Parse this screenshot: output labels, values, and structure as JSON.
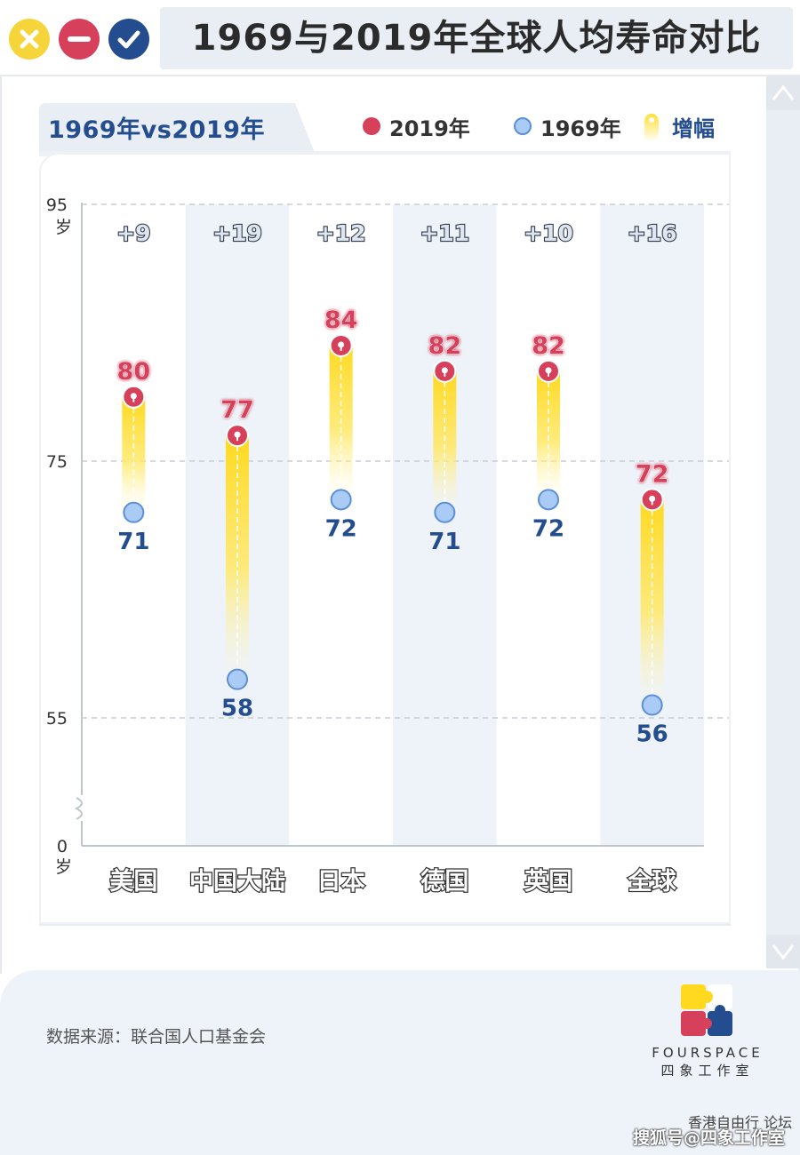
{
  "window": {
    "title": "1969与2019年全球人均寿命对比",
    "buttons": [
      "close",
      "minimize",
      "confirm"
    ]
  },
  "header": {
    "tab_label": "1969年vs2019年",
    "legend": {
      "y2019": "2019年",
      "y1969": "1969年",
      "increase": "增幅"
    }
  },
  "colors": {
    "y2019": "#d6405a",
    "y1969": "#a9cbf5",
    "increase": "#ffe033",
    "accent": "#244d8f",
    "band": "#eef3f9"
  },
  "chart_data": {
    "type": "dot-range",
    "categories": [
      "美国",
      "中国大陆",
      "日本",
      "德国",
      "英国",
      "全球"
    ],
    "series": [
      {
        "name": "1969年",
        "values": [
          71,
          58,
          72,
          71,
          72,
          56
        ]
      },
      {
        "name": "2019年",
        "values": [
          80,
          77,
          84,
          82,
          82,
          72
        ]
      }
    ],
    "increase_labels": [
      "+9",
      "+19",
      "+12",
      "+11",
      "+10",
      "+16"
    ],
    "yticks": [
      "95",
      "75",
      "55",
      "0"
    ],
    "yunit": "岁",
    "ylim": [
      0,
      95
    ],
    "axis_break": true,
    "grid": true
  },
  "footer": {
    "source": "数据来源：联合国人口基金会",
    "brand_en": "FOURSPACE",
    "brand_cn": "四象工作室",
    "watermark_1": "香港自由行",
    "watermark_1b": "论坛",
    "watermark_2": "搜狐号@四象工作室"
  }
}
